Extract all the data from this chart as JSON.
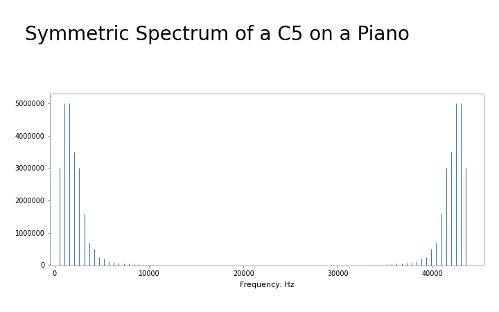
{
  "title": "Symmetric Spectrum of a C5 on a Piano",
  "xlabel": "Frequency: Hz",
  "ylabel": "",
  "sample_rate": 44100,
  "fundamental": 523.25,
  "amp_profile": {
    "1": 3000000,
    "2": 5000000,
    "3": 5000000,
    "4": 3500000,
    "5": 3000000,
    "6": 1600000,
    "7": 700000,
    "8": 500000,
    "9": 250000,
    "10": 200000,
    "11": 120000,
    "12": 100000,
    "13": 80000,
    "14": 60000,
    "15": 50000,
    "16": 40000,
    "17": 30000,
    "18": 20000,
    "19": 15000,
    "20": 10000
  },
  "xlim": [
    -500,
    45500
  ],
  "ylim": [
    0,
    5300000
  ],
  "yticks": [
    0,
    1000000,
    2000000,
    3000000,
    4000000,
    5000000
  ],
  "xticks": [
    0,
    10000,
    20000,
    30000,
    40000
  ],
  "line_color": "#3a7abf",
  "bg_color": "#ffffff",
  "title_fontsize": 20,
  "axis_fontsize": 7,
  "fig_bg_color": "#ffffff"
}
